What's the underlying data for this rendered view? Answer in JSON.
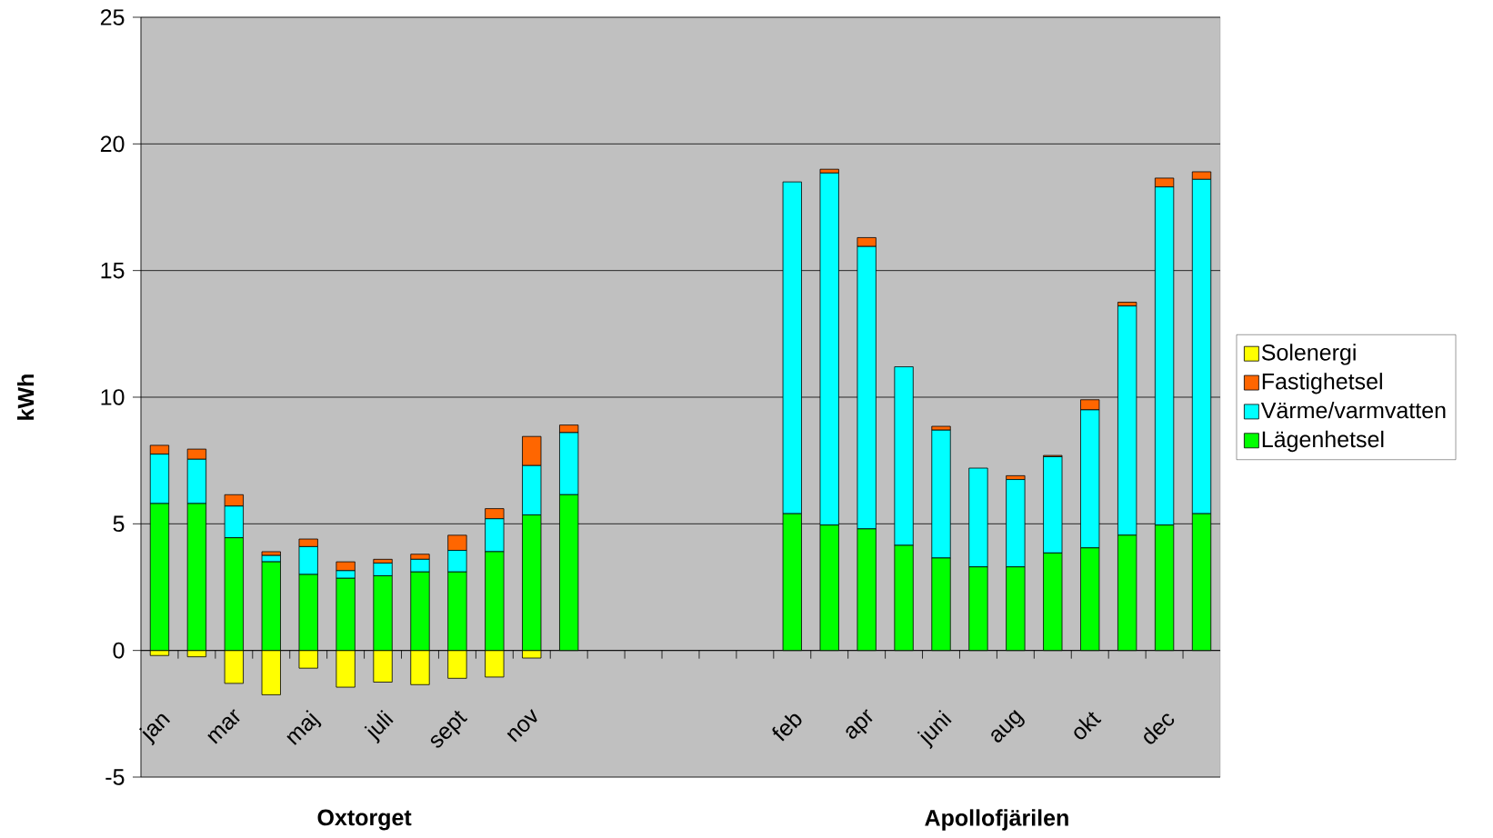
{
  "chart_data": {
    "type": "bar",
    "stacked": true,
    "ylabel": "kWh",
    "categories": [
      "jan",
      null,
      "mar",
      null,
      "maj",
      null,
      "juli",
      null,
      "sept",
      null,
      "nov",
      null,
      null,
      null,
      null,
      null,
      null,
      "feb",
      null,
      "apr",
      null,
      "juni",
      null,
      "aug",
      null,
      "okt",
      null,
      "dec",
      null
    ],
    "series": [
      {
        "name": "Lägenhetsel",
        "color": "#00ff00",
        "values": [
          5.8,
          5.8,
          4.45,
          3.5,
          3.0,
          2.85,
          2.95,
          3.1,
          3.1,
          3.9,
          5.35,
          6.15,
          null,
          null,
          null,
          null,
          null,
          5.4,
          4.95,
          4.8,
          4.15,
          3.65,
          3.3,
          3.3,
          3.85,
          4.05,
          4.55,
          4.95,
          5.4
        ]
      },
      {
        "name": "Värme/varmvatten",
        "color": "#00ffff",
        "values": [
          1.95,
          1.75,
          1.25,
          0.25,
          1.1,
          0.3,
          0.5,
          0.5,
          0.85,
          1.3,
          1.95,
          2.45,
          null,
          null,
          null,
          null,
          null,
          13.1,
          13.9,
          11.15,
          7.05,
          5.05,
          3.9,
          3.45,
          3.8,
          5.45,
          9.05,
          13.35,
          13.2
        ]
      },
      {
        "name": "Fastighetsel",
        "color": "#ff6600",
        "values": [
          0.35,
          0.4,
          0.45,
          0.15,
          0.3,
          0.35,
          0.15,
          0.2,
          0.6,
          0.4,
          1.15,
          0.3,
          null,
          null,
          null,
          null,
          null,
          null,
          0.15,
          0.35,
          null,
          0.15,
          null,
          0.15,
          0.05,
          0.4,
          0.15,
          0.35,
          0.3
        ]
      },
      {
        "name": "Solenergi",
        "color": "#ffff00",
        "values": [
          -0.2,
          -0.25,
          -1.3,
          -1.75,
          -0.7,
          -1.45,
          -1.25,
          -1.35,
          -1.1,
          -1.05,
          -0.3,
          null,
          null,
          null,
          null,
          null,
          null,
          null,
          null,
          null,
          null,
          null,
          null,
          null,
          null,
          null,
          null,
          null,
          null
        ]
      }
    ],
    "ylim": [
      -5,
      25
    ],
    "yticks": [
      -5,
      0,
      5,
      10,
      15,
      20,
      25
    ],
    "grid": "y",
    "legend": "right",
    "annotations": [
      "Oxtorget",
      "Apollofjärilen"
    ]
  }
}
